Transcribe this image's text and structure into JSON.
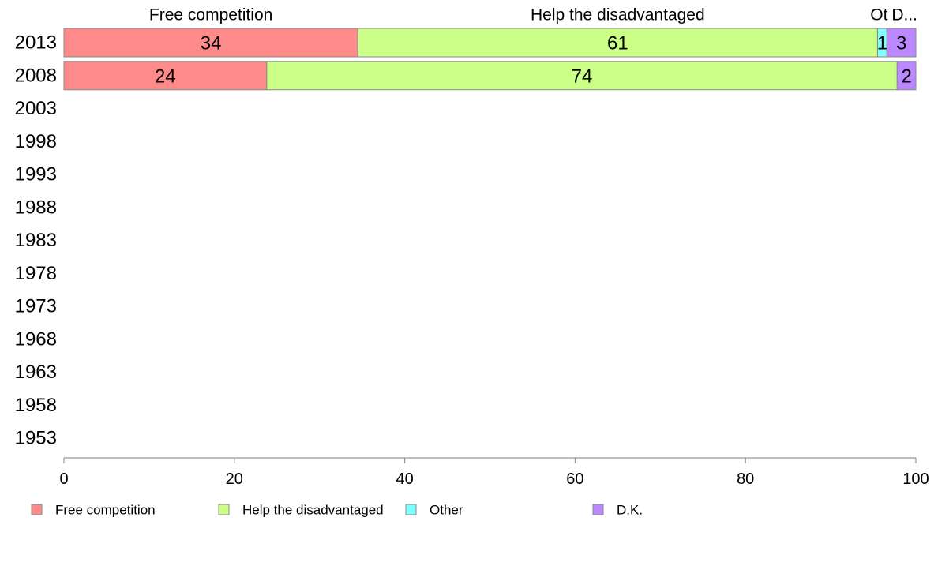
{
  "chart_data": {
    "type": "bar",
    "orientation": "horizontal",
    "stacked": true,
    "categories": [
      "2013",
      "2008",
      "2003",
      "1998",
      "1993",
      "1988",
      "1983",
      "1978",
      "1973",
      "1968",
      "1963",
      "1958",
      "1953"
    ],
    "series": [
      {
        "name": "Free competition",
        "color": "#ff8a8a",
        "values": [
          34.5,
          23.8,
          null,
          null,
          null,
          null,
          null,
          null,
          null,
          null,
          null,
          null,
          null
        ],
        "labels": [
          "34",
          "24"
        ]
      },
      {
        "name": "Help the disadvantaged",
        "color": "#ccff88",
        "values": [
          61,
          74,
          null,
          null,
          null,
          null,
          null,
          null,
          null,
          null,
          null,
          null,
          null
        ],
        "labels": [
          "61",
          "74"
        ]
      },
      {
        "name": "Other",
        "color": "#80ffff",
        "values": [
          1.1,
          0,
          null,
          null,
          null,
          null,
          null,
          null,
          null,
          null,
          null,
          null,
          null
        ],
        "labels": [
          "1",
          ""
        ]
      },
      {
        "name": "D.K.",
        "color": "#bb88ff",
        "values": [
          3.4,
          2.2,
          null,
          null,
          null,
          null,
          null,
          null,
          null,
          null,
          null,
          null,
          null
        ],
        "labels": [
          "3",
          "2"
        ]
      }
    ],
    "top_labels": [
      "Free competition",
      "Help the disadvantaged",
      "Ot",
      "D..."
    ],
    "xlim": [
      0,
      100
    ],
    "xticks": [
      "0",
      "20",
      "40",
      "60",
      "80",
      "100"
    ],
    "grid": false,
    "legend_position": "bottom"
  }
}
